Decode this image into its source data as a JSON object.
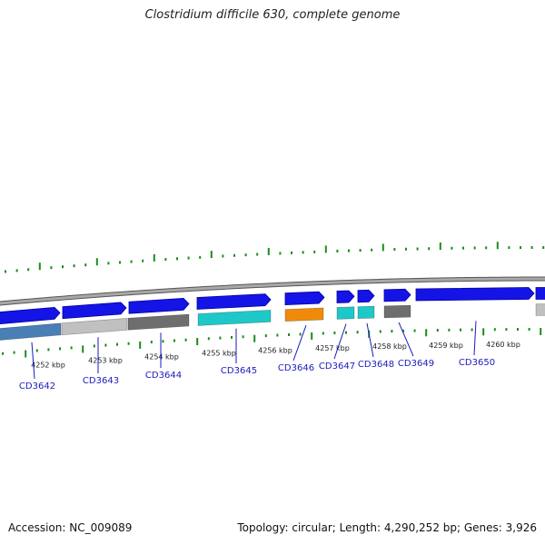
{
  "title": "Clostridium difficile 630, complete genome",
  "accession": "Accession: NC_009089",
  "stats": "Topology: circular; Length: 4,290,252 bp; Genes: 3,926",
  "colors": {
    "forward_gene": "#1414e6",
    "forward_edge": "#0000a0",
    "backbone": "#8a8a8a",
    "tick": "#1a8c1a",
    "label": "#1a1abf"
  },
  "scale_ticks": [
    {
      "label": "4252 kbp"
    },
    {
      "label": "4253 kbp"
    },
    {
      "label": "4254 kbp"
    },
    {
      "label": "4255 kbp"
    },
    {
      "label": "4256 kbp"
    },
    {
      "label": "4257 kbp"
    },
    {
      "label": "4258 kbp"
    },
    {
      "label": "4259 kbp"
    },
    {
      "label": "4260 kbp"
    }
  ],
  "genes": [
    {
      "name": "CD3642",
      "cog_color": "#4a7fb5"
    },
    {
      "name": "CD3643",
      "cog_color": "#c0c0c0"
    },
    {
      "name": "CD3644",
      "cog_color": "#6e6e6e"
    },
    {
      "name": "CD3645",
      "cog_color": "#1ec8c8"
    },
    {
      "name": "CD3646",
      "cog_color": "#f08a0a"
    },
    {
      "name": "CD3647",
      "cog_color": "#1ec8c8"
    },
    {
      "name": "CD3648",
      "cog_color": "#1ec8c8"
    },
    {
      "name": "CD3649",
      "cog_color": "#6e6e6e"
    },
    {
      "name": "CD3650",
      "cog_color": "#c0c0c0"
    }
  ]
}
